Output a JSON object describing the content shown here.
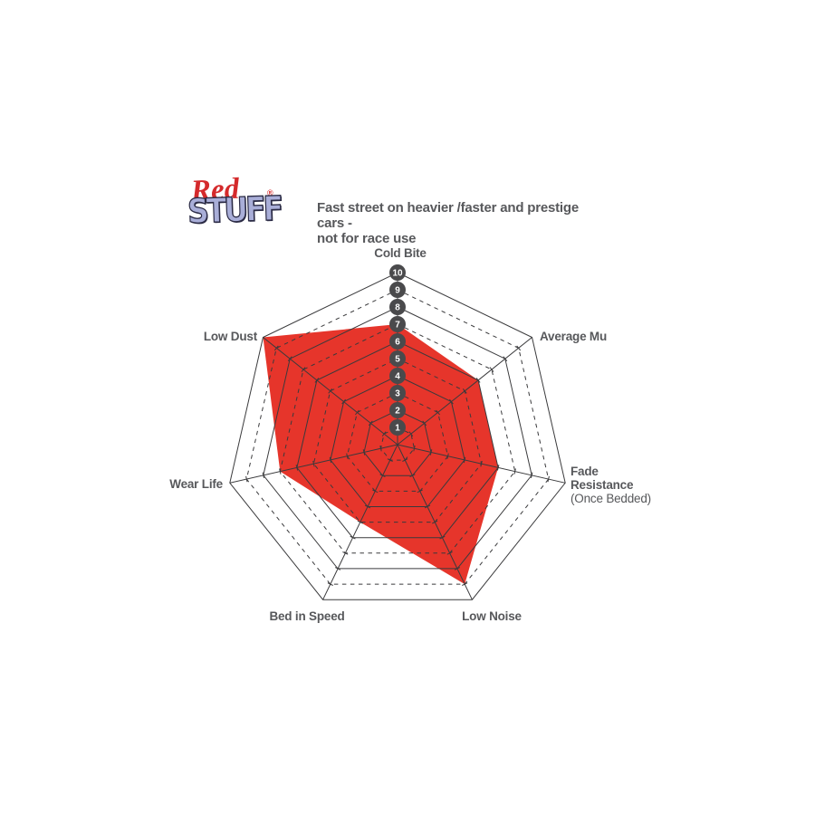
{
  "logo": {
    "word_red": "Red",
    "word_stuff": "STUFF",
    "registered_mark": "®",
    "red_color": "#d42a2c",
    "stuff_color": "#a9aed8"
  },
  "subtitle": "Fast street on heavier /faster and prestige cars -\nnot for race use",
  "text_color": "#57585b",
  "chart_data": {
    "type": "radar",
    "categories": [
      "Cold Bite",
      "Average Mu",
      "Fade Resistance (Once Bedded)",
      "Low Noise",
      "Bed in Speed",
      "Wear Life",
      "Low Dust"
    ],
    "values": [
      7,
      6,
      6,
      9,
      5,
      7,
      10
    ],
    "scale": {
      "min": 1,
      "max": 10,
      "ticks": [
        1,
        2,
        3,
        4,
        5,
        6,
        7,
        8,
        9,
        10
      ]
    },
    "grid": "concentric heptagons, even rings solid, odd rings dashed",
    "legend_position": "none",
    "colors": {
      "fill": "#e6352b",
      "grid": "#3a3a3c",
      "badge": "#4a4a4c",
      "badge_text": "#ffffff"
    }
  },
  "axis_labels": {
    "cold_bite": "Cold Bite",
    "average_mu": "Average Mu",
    "fade_line1": "Fade",
    "fade_line2": "Resistance",
    "fade_line3": "(Once Bedded)",
    "low_noise": "Low Noise",
    "bed_in_speed": "Bed in Speed",
    "wear_life": "Wear Life",
    "low_dust": "Low Dust"
  }
}
